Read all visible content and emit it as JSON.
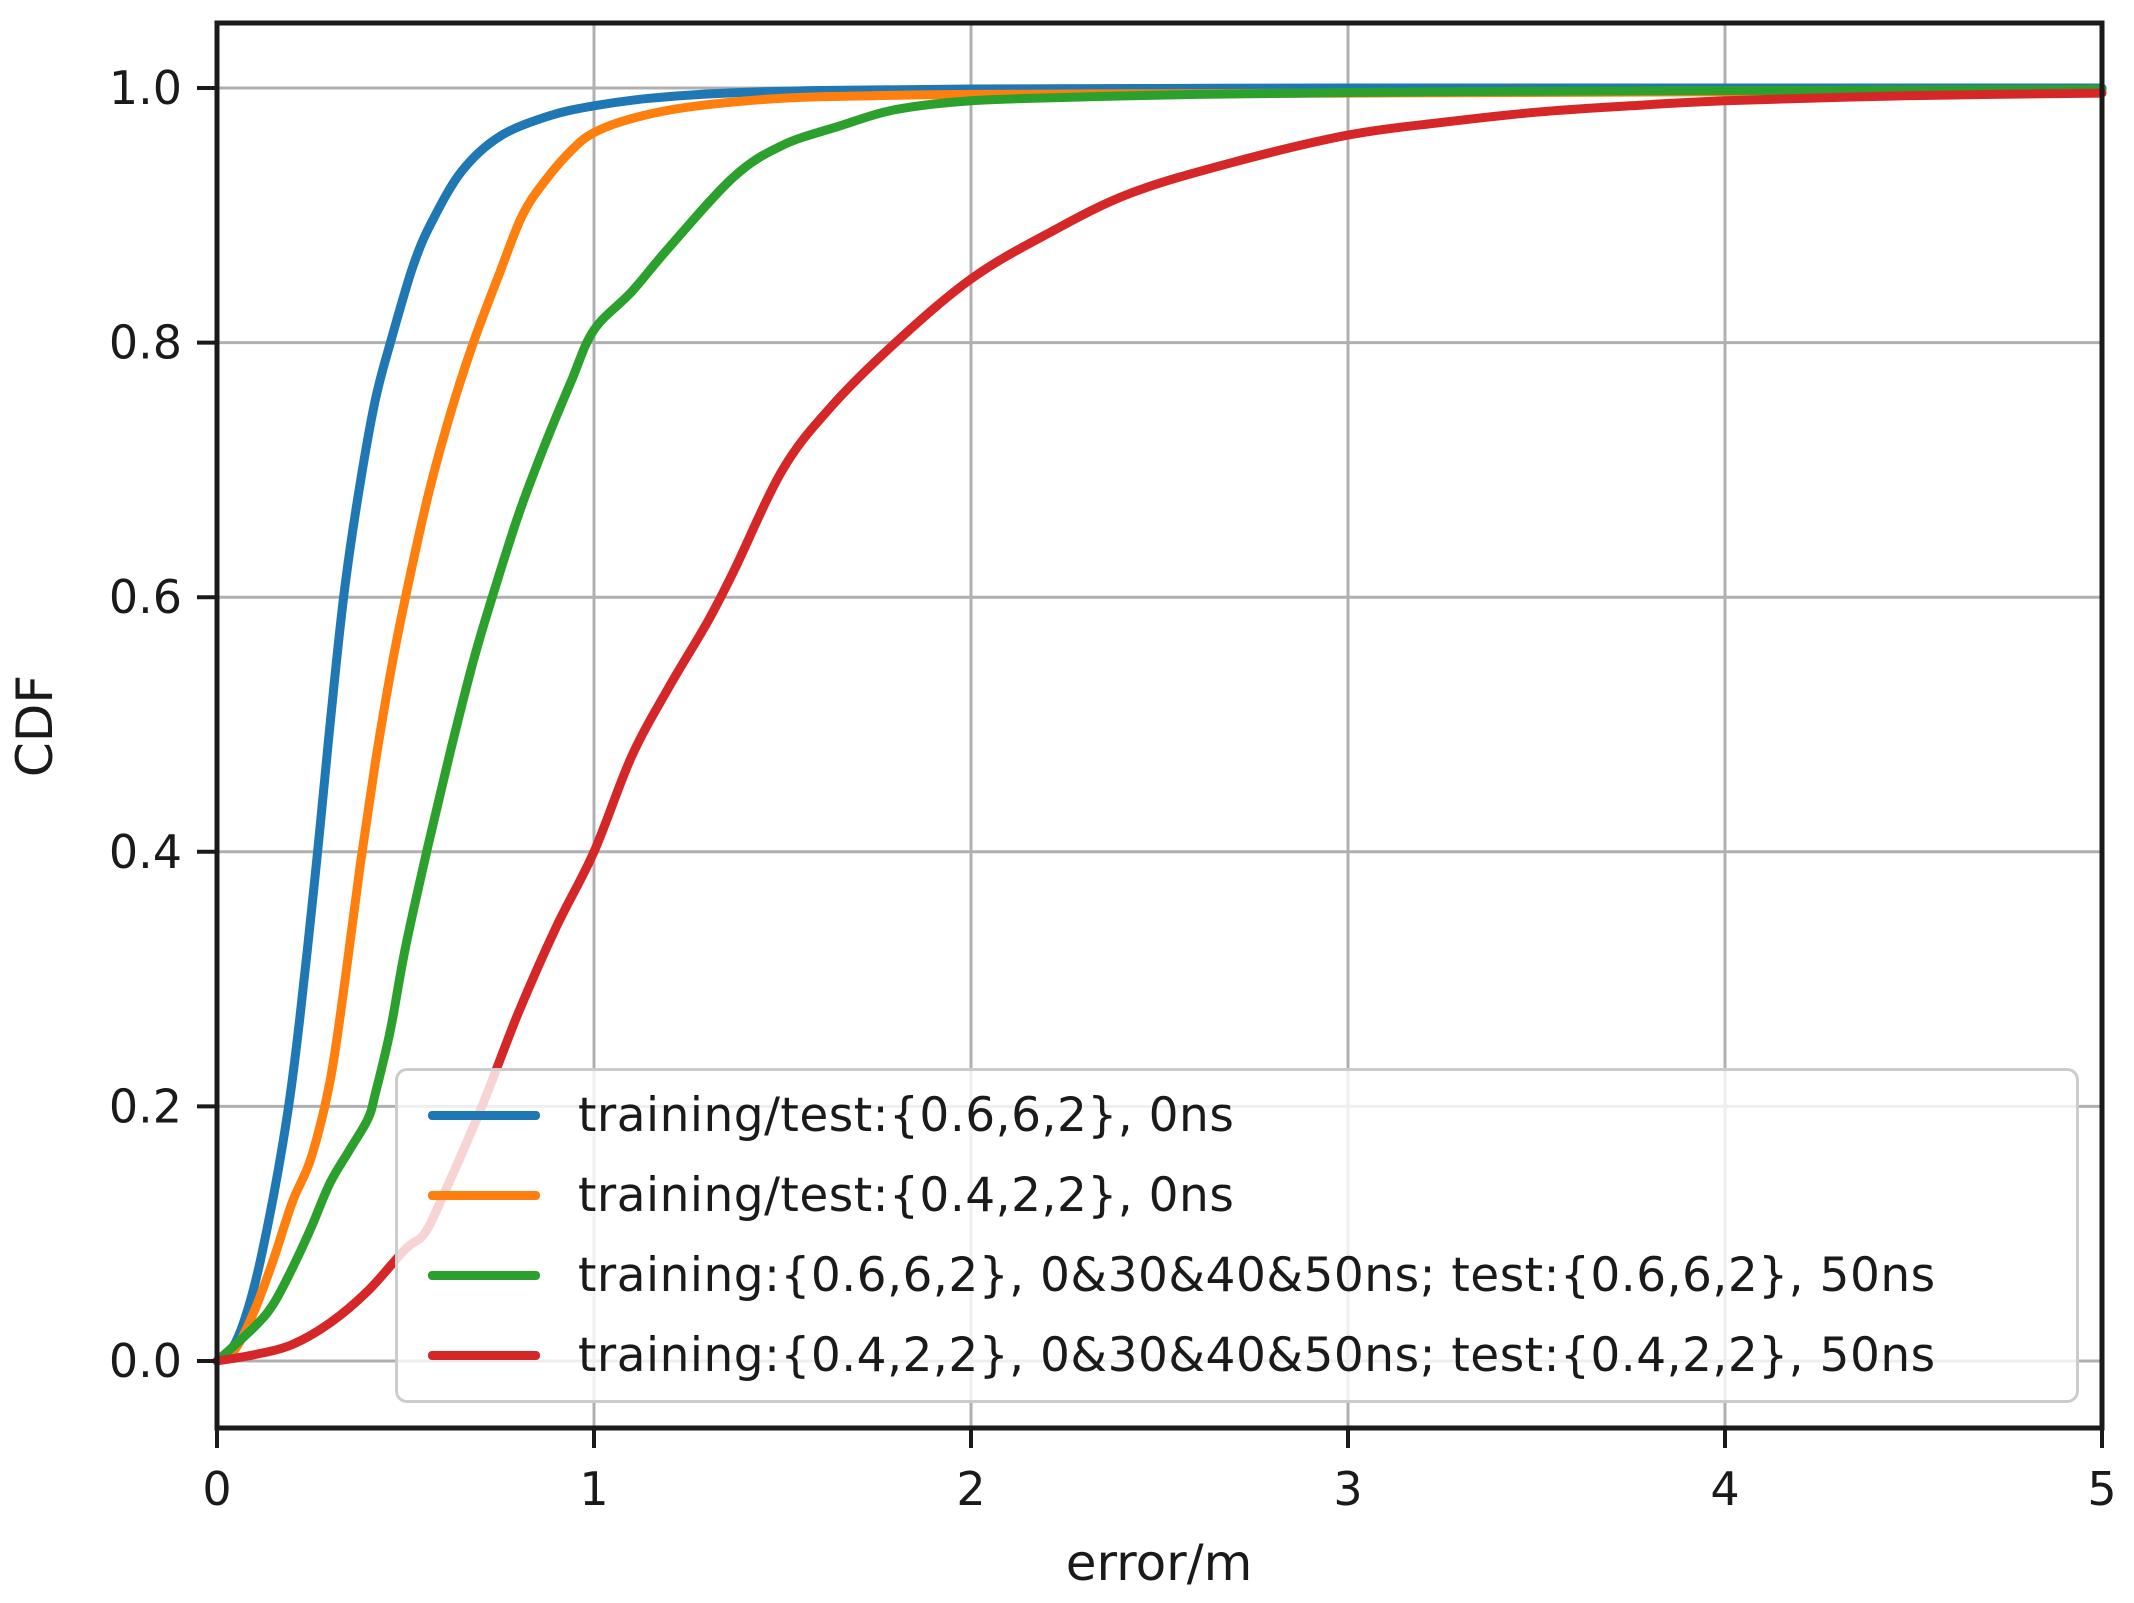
{
  "figure": {
    "background": "#ffffff",
    "text_color": "#1a1a1a",
    "grid_color": "#b0b0b0",
    "spine_color": "#1a1a1a",
    "xlabel": "error/m",
    "ylabel": "CDF",
    "x_ticks": {
      "values": [
        0,
        1,
        2,
        3,
        4,
        5
      ],
      "labels": [
        "0",
        "1",
        "2",
        "3",
        "4",
        "5"
      ]
    },
    "y_ticks": {
      "values": [
        0.0,
        0.2,
        0.4,
        0.6,
        0.8,
        1.0
      ],
      "labels": [
        "0.0",
        "0.2",
        "0.4",
        "0.6",
        "0.8",
        "1.0"
      ]
    }
  },
  "chart_data": {
    "type": "line",
    "title": "",
    "xlabel": "error/m",
    "ylabel": "CDF",
    "xlim": [
      0,
      5
    ],
    "ylim": [
      -0.052,
      1.052
    ],
    "grid": true,
    "legend_position": "lower right",
    "series": [
      {
        "name": "training/test:{0.6,6,2}, 0ns",
        "color": "#1f77b4",
        "points": [
          [
            0,
            0
          ],
          [
            0.05,
            0.015
          ],
          [
            0.1,
            0.06
          ],
          [
            0.15,
            0.13
          ],
          [
            0.19,
            0.2
          ],
          [
            0.22,
            0.27
          ],
          [
            0.26,
            0.38
          ],
          [
            0.28,
            0.44
          ],
          [
            0.31,
            0.53
          ],
          [
            0.34,
            0.61
          ],
          [
            0.38,
            0.69
          ],
          [
            0.42,
            0.755
          ],
          [
            0.46,
            0.8
          ],
          [
            0.52,
            0.86
          ],
          [
            0.57,
            0.895
          ],
          [
            0.65,
            0.935
          ],
          [
            0.75,
            0.962
          ],
          [
            0.88,
            0.978
          ],
          [
            1.0,
            0.986
          ],
          [
            1.15,
            0.992
          ],
          [
            1.35,
            0.996
          ],
          [
            1.6,
            0.998
          ],
          [
            2.0,
            0.9992
          ],
          [
            2.5,
            0.9996
          ],
          [
            3.0,
            1.0
          ],
          [
            4.0,
            1.0
          ],
          [
            5.0,
            1.0
          ]
        ]
      },
      {
        "name": "training/test:{0.4,2,2}, 0ns",
        "color": "#ff7f0e",
        "points": [
          [
            0,
            0
          ],
          [
            0.05,
            0.01
          ],
          [
            0.1,
            0.04
          ],
          [
            0.15,
            0.08
          ],
          [
            0.2,
            0.125
          ],
          [
            0.25,
            0.16
          ],
          [
            0.3,
            0.22
          ],
          [
            0.34,
            0.3
          ],
          [
            0.38,
            0.39
          ],
          [
            0.42,
            0.47
          ],
          [
            0.46,
            0.54
          ],
          [
            0.5,
            0.6
          ],
          [
            0.56,
            0.68
          ],
          [
            0.62,
            0.745
          ],
          [
            0.68,
            0.8
          ],
          [
            0.75,
            0.855
          ],
          [
            0.81,
            0.9
          ],
          [
            0.87,
            0.927
          ],
          [
            0.94,
            0.951
          ],
          [
            1.0,
            0.965
          ],
          [
            1.1,
            0.976
          ],
          [
            1.25,
            0.985
          ],
          [
            1.5,
            0.992
          ],
          [
            1.75,
            0.994
          ],
          [
            2.0,
            0.995
          ],
          [
            2.5,
            0.9955
          ],
          [
            3.0,
            0.996
          ],
          [
            4.0,
            0.997
          ],
          [
            5.0,
            0.998
          ]
        ]
      },
      {
        "name": "training:{0.6,6,2}, 0&30&40&50ns; test:{0.6,6,2}, 50ns",
        "color": "#2ca02c",
        "points": [
          [
            0,
            0
          ],
          [
            0.1,
            0.027
          ],
          [
            0.15,
            0.045
          ],
          [
            0.2,
            0.073
          ],
          [
            0.25,
            0.105
          ],
          [
            0.3,
            0.14
          ],
          [
            0.35,
            0.165
          ],
          [
            0.4,
            0.19
          ],
          [
            0.42,
            0.21
          ],
          [
            0.46,
            0.26
          ],
          [
            0.5,
            0.325
          ],
          [
            0.56,
            0.405
          ],
          [
            0.62,
            0.48
          ],
          [
            0.68,
            0.55
          ],
          [
            0.73,
            0.6
          ],
          [
            0.8,
            0.665
          ],
          [
            0.87,
            0.72
          ],
          [
            0.94,
            0.77
          ],
          [
            1.0,
            0.81
          ],
          [
            1.1,
            0.84
          ],
          [
            1.2,
            0.875
          ],
          [
            1.37,
            0.93
          ],
          [
            1.5,
            0.955
          ],
          [
            1.65,
            0.97
          ],
          [
            1.8,
            0.983
          ],
          [
            2.0,
            0.99
          ],
          [
            2.3,
            0.993
          ],
          [
            2.6,
            0.995
          ],
          [
            3.0,
            0.9965
          ],
          [
            3.5,
            0.9975
          ],
          [
            4.0,
            0.998
          ],
          [
            4.5,
            0.9985
          ],
          [
            5.0,
            0.999
          ]
        ]
      },
      {
        "name": "training:{0.4,2,2}, 0&30&40&50ns; test:{0.4,2,2}, 50ns",
        "color": "#d62728",
        "points": [
          [
            0,
            0
          ],
          [
            0.1,
            0.005
          ],
          [
            0.2,
            0.013
          ],
          [
            0.3,
            0.03
          ],
          [
            0.4,
            0.055
          ],
          [
            0.5,
            0.088
          ],
          [
            0.55,
            0.1
          ],
          [
            0.6,
            0.13
          ],
          [
            0.7,
            0.198
          ],
          [
            0.8,
            0.274
          ],
          [
            0.9,
            0.341
          ],
          [
            1.0,
            0.4
          ],
          [
            1.1,
            0.475
          ],
          [
            1.2,
            0.53
          ],
          [
            1.3,
            0.58
          ],
          [
            1.37,
            0.62
          ],
          [
            1.5,
            0.7
          ],
          [
            1.63,
            0.75
          ],
          [
            1.8,
            0.8
          ],
          [
            2.0,
            0.85
          ],
          [
            2.2,
            0.885
          ],
          [
            2.42,
            0.917
          ],
          [
            2.7,
            0.942
          ],
          [
            3.0,
            0.963
          ],
          [
            3.25,
            0.973
          ],
          [
            3.5,
            0.981
          ],
          [
            3.75,
            0.986
          ],
          [
            4.0,
            0.99
          ],
          [
            4.5,
            0.994
          ],
          [
            5.0,
            0.996
          ]
        ]
      }
    ]
  }
}
